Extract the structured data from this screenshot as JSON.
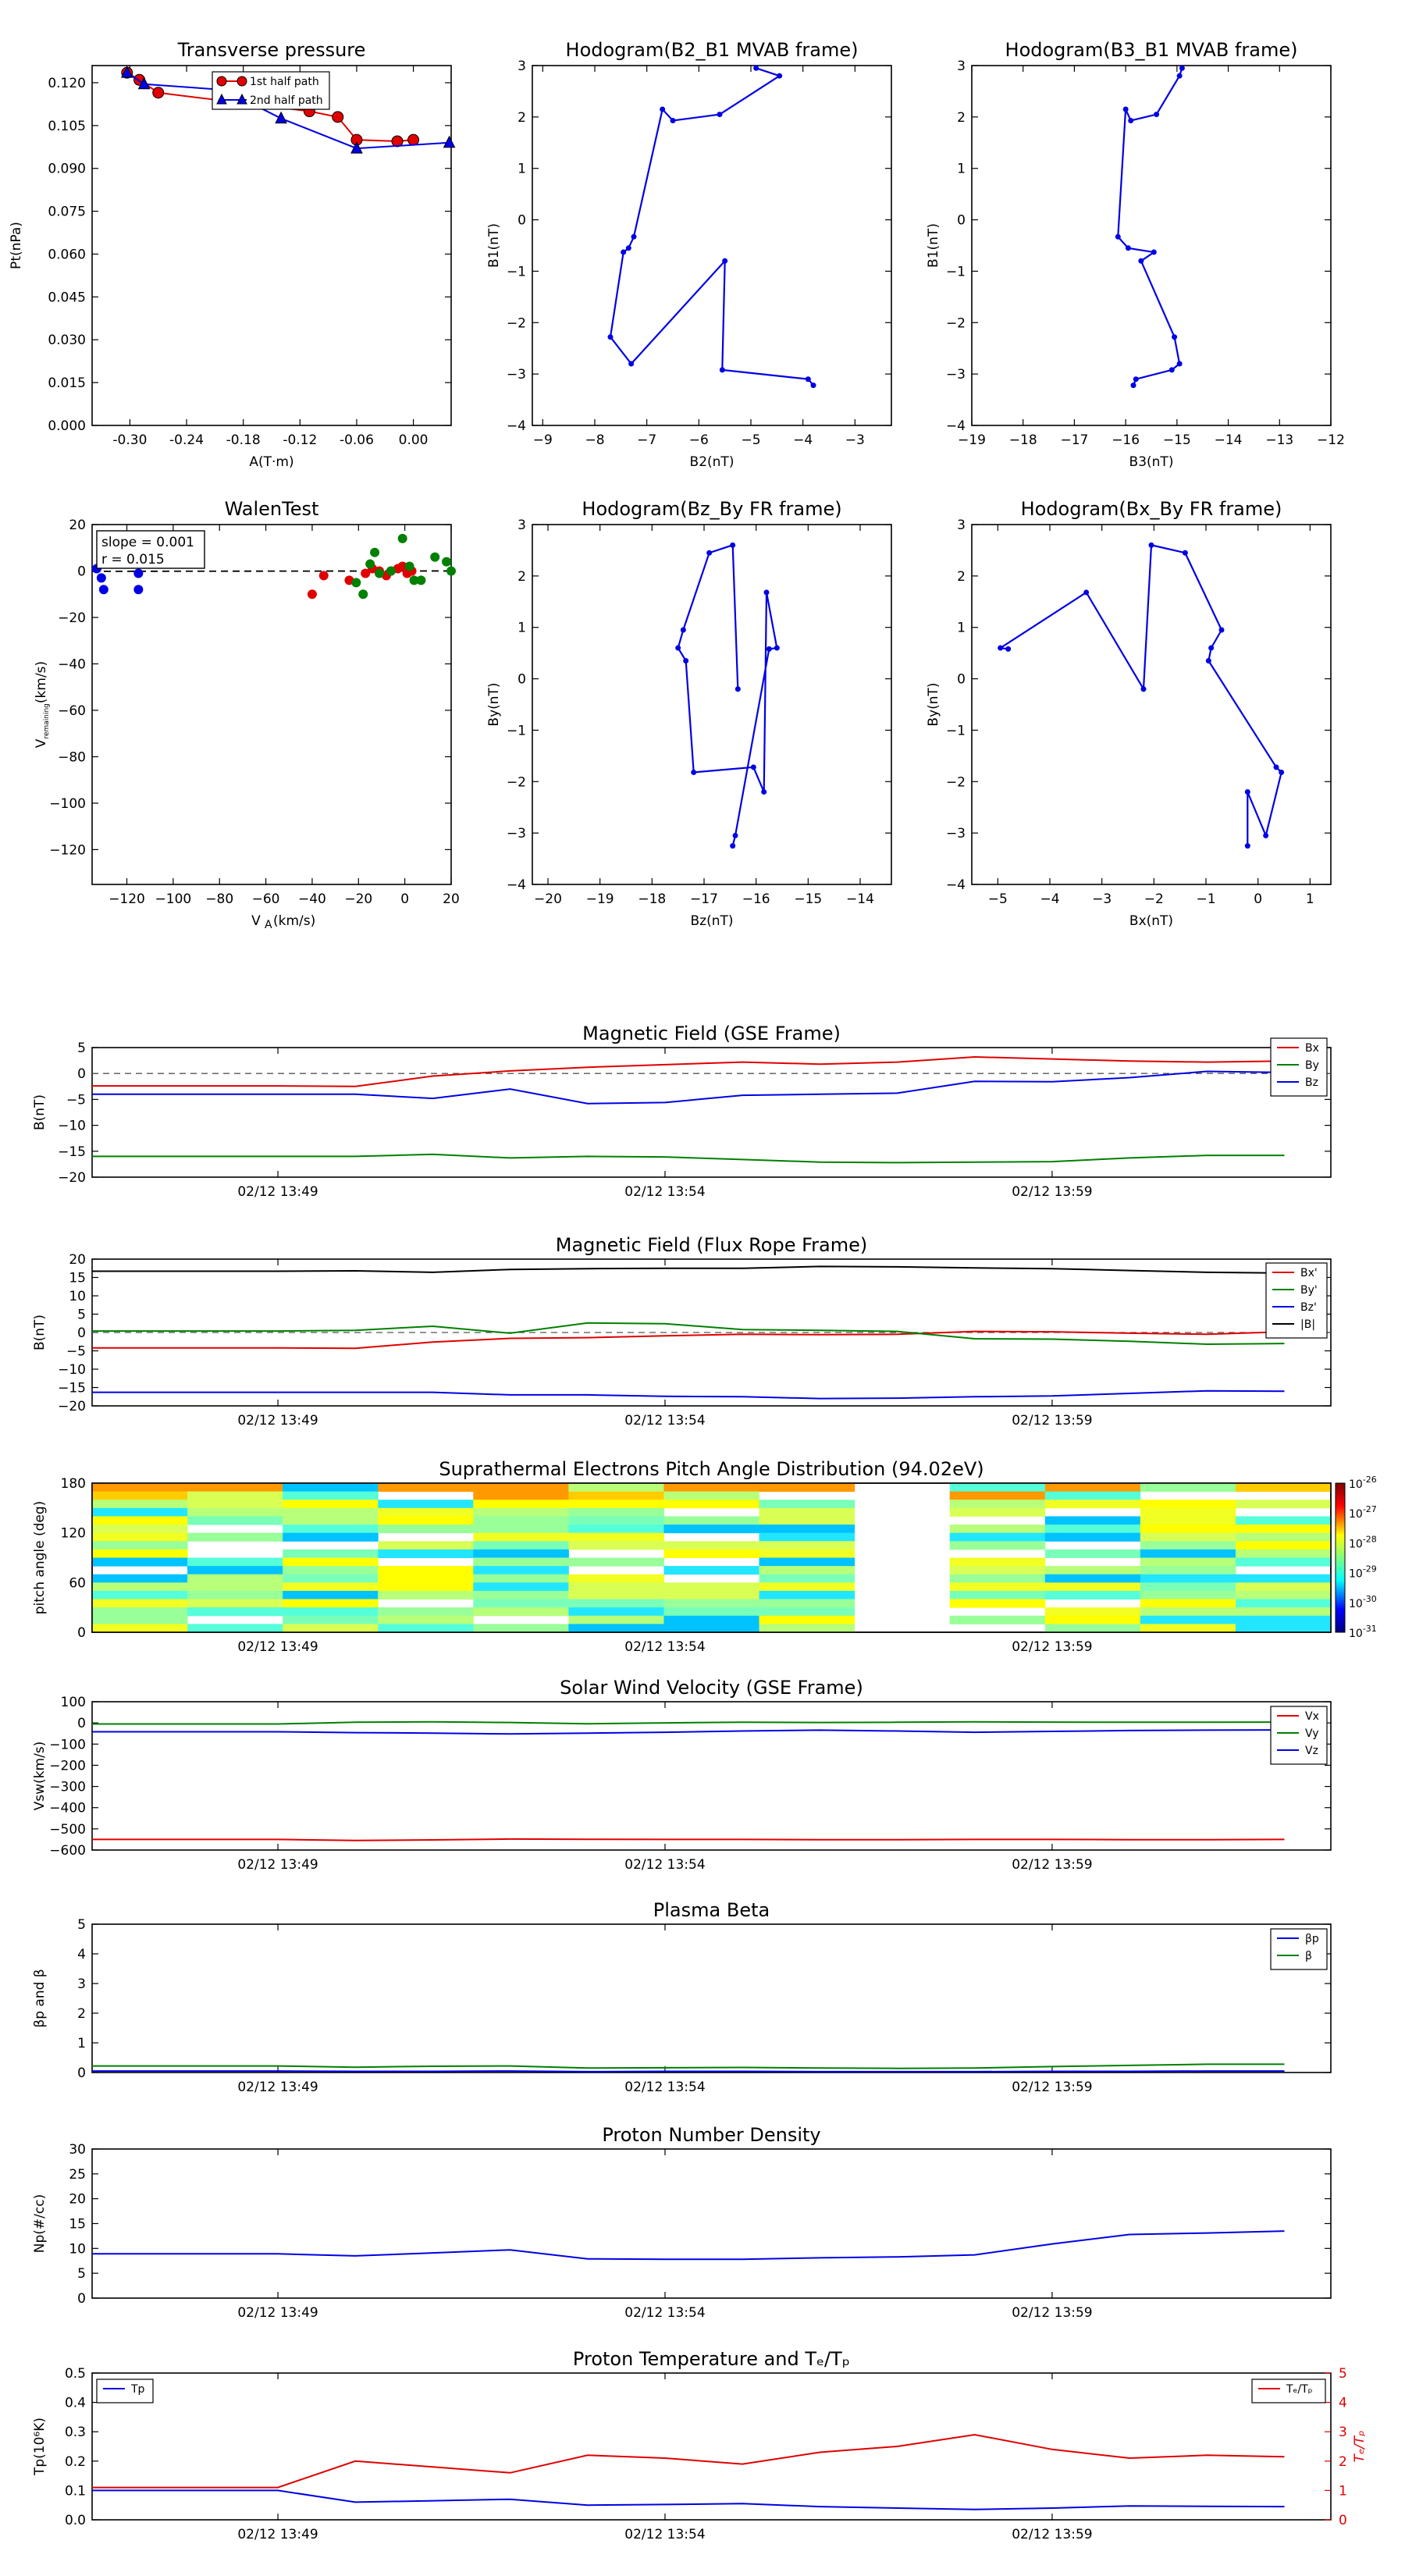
{
  "colors": {
    "red": "#e00000",
    "green": "#008000",
    "blue": "#0000e6",
    "black": "#000000"
  },
  "charts": {
    "transverse": {
      "title": "Transverse pressure",
      "xlabel": "A(T·m)",
      "ylabel": "Pt(nPa)",
      "xticks": [
        "-0.30",
        "-0.24",
        "-0.18",
        "-0.12",
        "-0.06",
        "0.00"
      ],
      "yticks": [
        "0.000",
        "0.015",
        "0.030",
        "0.045",
        "0.060",
        "0.075",
        "0.090",
        "0.105",
        "0.120"
      ],
      "legend": [
        "1st half path",
        "2nd half path"
      ]
    },
    "hodo1": {
      "title": "Hodogram(B2_B1 MVAB frame)",
      "xlabel": "B2(nT)",
      "ylabel": "B1(nT)",
      "xticks": [
        "−9",
        "−8",
        "−7",
        "−6",
        "−5",
        "−4",
        "−3"
      ],
      "yticks": [
        "−4",
        "−3",
        "−2",
        "−1",
        "0",
        "1",
        "2",
        "3"
      ]
    },
    "hodo2": {
      "title": "Hodogram(B3_B1 MVAB frame)",
      "xlabel": "B3(nT)",
      "ylabel": "B1(nT)",
      "xticks": [
        "−19",
        "−18",
        "−17",
        "−16",
        "−15",
        "−14",
        "−13",
        "−12"
      ],
      "yticks": [
        "−4",
        "−3",
        "−2",
        "−1",
        "0",
        "1",
        "2",
        "3"
      ]
    },
    "walen": {
      "title": "WalenTest",
      "xlabel": "V",
      "xlabel_sub": "A",
      "xlabel_rest": "(km/s)",
      "ylabel": "V",
      "ylabel_sub": "remaining",
      "ylabel_rest": "(km/s)",
      "xticks": [
        "−120",
        "−100",
        "−80",
        "−60",
        "−40",
        "−20",
        "0",
        "20"
      ],
      "yticks": [
        "−120",
        "−100",
        "−80",
        "−60",
        "−40",
        "−20",
        "0",
        "20"
      ],
      "slope_text": "slope = 0.001",
      "r_text": "r = 0.015"
    },
    "hodo3": {
      "title": "Hodogram(Bz_By FR frame)",
      "xlabel": "Bz(nT)",
      "ylabel": "By(nT)",
      "xticks": [
        "−20",
        "−19",
        "−18",
        "−17",
        "−16",
        "−15",
        "−14"
      ],
      "yticks": [
        "−4",
        "−3",
        "−2",
        "−1",
        "0",
        "1",
        "2",
        "3"
      ]
    },
    "hodo4": {
      "title": "Hodogram(Bx_By FR frame)",
      "xlabel": "Bx(nT)",
      "ylabel": "By(nT)",
      "xticks": [
        "−5",
        "−4",
        "−3",
        "−2",
        "−1",
        "0",
        "1"
      ],
      "yticks": [
        "−4",
        "−3",
        "−2",
        "−1",
        "0",
        "1",
        "2",
        "3"
      ]
    },
    "mag_gse": {
      "title": "Magnetic Field (GSE Frame)",
      "ylabel": "B(nT)",
      "yticks": [
        "−20",
        "−15",
        "−10",
        "−5",
        "0",
        "5"
      ],
      "legend": [
        "Bx",
        "By",
        "Bz"
      ]
    },
    "mag_fr": {
      "title": "Magnetic Field (Flux Rope Frame)",
      "ylabel": "B(nT)",
      "yticks": [
        "−20",
        "−15",
        "−10",
        "−5",
        "0",
        "5",
        "10",
        "15",
        "20"
      ],
      "legend": [
        "Bx'",
        "By'",
        "Bz'",
        "|B|"
      ]
    },
    "pad": {
      "title": "Suprathermal Electrons Pitch Angle Distribution (94.02eV)",
      "ylabel": "pitch angle (deg)",
      "yticks": [
        "0",
        "60",
        "120",
        "180"
      ],
      "cbar_ticks": [
        "10",
        "10",
        "10",
        "10",
        "10",
        "10"
      ],
      "cbar_exps": [
        "-26",
        "-27",
        "-28",
        "-29",
        "-30",
        "-31"
      ]
    },
    "vsw": {
      "title": "Solar Wind Velocity (GSE Frame)",
      "ylabel": "Vsw(km/s)",
      "yticks": [
        "−600",
        "−500",
        "−400",
        "−300",
        "−200",
        "−100",
        "0",
        "100"
      ],
      "legend": [
        "Vx",
        "Vy",
        "Vz"
      ]
    },
    "beta": {
      "title": "Plasma Beta",
      "ylabel": "βp and β",
      "yticks": [
        "0",
        "1",
        "2",
        "3",
        "4",
        "5"
      ],
      "legend": [
        "βp",
        "β"
      ]
    },
    "density": {
      "title": "Proton Number Density",
      "ylabel": "Np(#/cc)",
      "yticks": [
        "0",
        "5",
        "10",
        "15",
        "20",
        "25",
        "30"
      ]
    },
    "temp": {
      "title": "Proton Temperature and Tₑ/Tₚ",
      "ylabel": "Tp(10⁶K)",
      "ylabel_right": "Tₑ/Tₚ",
      "yticks": [
        "0.0",
        "0.1",
        "0.2",
        "0.3",
        "0.4",
        "0.5"
      ],
      "yticks_right": [
        "0",
        "1",
        "2",
        "3",
        "4",
        "5"
      ],
      "legend": [
        "Tp",
        "Tₑ/Tₚ"
      ]
    },
    "time_ticks": [
      "02/12 13:49",
      "02/12 13:54",
      "02/12 13:59"
    ]
  },
  "chart_data": [
    {
      "type": "scatter",
      "title": "Transverse pressure",
      "xlabel": "A(T·m)",
      "ylabel": "Pt(nPa)",
      "xlim": [
        -0.34,
        0.04
      ],
      "ylim": [
        0.0,
        0.126
      ],
      "series": [
        {
          "name": "1st half path",
          "marker": "circle",
          "color": "#e00000",
          "x": [
            -0.303,
            -0.29,
            -0.27,
            -0.11,
            -0.08,
            -0.06,
            -0.017,
            0.0
          ],
          "y": [
            0.1235,
            0.121,
            0.1165,
            0.11,
            0.108,
            0.1,
            0.0995,
            0.1
          ]
        },
        {
          "name": "2nd half path",
          "marker": "triangle",
          "color": "#0000e6",
          "x": [
            -0.303,
            -0.285,
            -0.2,
            -0.14,
            -0.06,
            0.038
          ],
          "y": [
            0.1235,
            0.1195,
            0.1175,
            0.1075,
            0.097,
            0.099
          ]
        }
      ]
    },
    {
      "type": "line",
      "title": "Hodogram(B2_B1 MVAB frame)",
      "xlabel": "B2(nT)",
      "ylabel": "B1(nT)",
      "xlim": [
        -9.2,
        -2.3
      ],
      "ylim": [
        -4,
        3
      ],
      "x": [
        -4.9,
        -4.45,
        -5.6,
        -6.5,
        -6.7,
        -7.25,
        -7.35,
        -7.45,
        -7.7,
        -7.3,
        -5.5,
        -5.55,
        -3.9,
        -3.8
      ],
      "y": [
        2.95,
        2.8,
        2.05,
        1.93,
        2.15,
        -0.33,
        -0.55,
        -0.63,
        -2.28,
        -2.8,
        -0.8,
        -2.92,
        -3.1,
        -3.22
      ]
    },
    {
      "type": "line",
      "title": "Hodogram(B3_B1 MVAB frame)",
      "xlabel": "B3(nT)",
      "ylabel": "B1(nT)",
      "xlim": [
        -19,
        -12
      ],
      "ylim": [
        -4,
        3
      ],
      "x": [
        -14.9,
        -14.95,
        -15.4,
        -15.9,
        -16.0,
        -16.15,
        -15.95,
        -15.45,
        -15.7,
        -15.05,
        -14.95,
        -15.1,
        -15.8,
        -15.85
      ],
      "y": [
        2.95,
        2.8,
        2.05,
        1.93,
        2.15,
        -0.33,
        -0.55,
        -0.63,
        -0.8,
        -2.28,
        -2.8,
        -2.92,
        -3.1,
        -3.22
      ]
    },
    {
      "type": "scatter",
      "title": "WalenTest",
      "xlabel": "VA(km/s)",
      "ylabel": "Vremaining(km/s)",
      "xlim": [
        -135,
        20
      ],
      "ylim": [
        -135,
        20
      ],
      "fit": {
        "slope": 0.001,
        "r": 0.015
      },
      "series": [
        {
          "color": "#0000e6",
          "x": [
            -133,
            -131,
            -130,
            -115,
            -115
          ],
          "y": [
            1,
            -3,
            -8,
            -1,
            -8
          ]
        },
        {
          "color": "#e00000",
          "x": [
            -40,
            -35,
            -24,
            -17,
            -14,
            -11,
            -8,
            -6,
            -3,
            -1,
            1,
            3
          ],
          "y": [
            -10,
            -2,
            -4,
            -1,
            1,
            0,
            -2,
            0,
            1,
            2,
            -1,
            0
          ]
        },
        {
          "color": "#008000",
          "x": [
            -21,
            -18,
            -15,
            -13,
            -11,
            -6,
            -1,
            2,
            4,
            7,
            13,
            18,
            20
          ],
          "y": [
            -5,
            -10,
            3,
            8,
            -1,
            0,
            14,
            2,
            -4,
            -4,
            6,
            4,
            0
          ]
        }
      ]
    },
    {
      "type": "line",
      "title": "Hodogram(Bz_By FR frame)",
      "xlabel": "Bz(nT)",
      "ylabel": "By(nT)",
      "xlim": [
        -20.3,
        -13.4
      ],
      "ylim": [
        -4,
        3
      ],
      "x": [
        -16.35,
        -16.45,
        -16.9,
        -17.4,
        -17.5,
        -17.35,
        -17.2,
        -16.05,
        -15.85,
        -15.8,
        -15.6,
        -15.75,
        -16.4,
        -16.45
      ],
      "y": [
        -0.2,
        2.6,
        2.45,
        0.95,
        0.6,
        0.35,
        -1.82,
        -1.72,
        -2.2,
        1.68,
        0.6,
        0.58,
        -3.05,
        -3.25
      ]
    },
    {
      "type": "line",
      "title": "Hodogram(Bx_By FR frame)",
      "xlabel": "Bx(nT)",
      "ylabel": "By(nT)",
      "xlim": [
        -5.5,
        1.4
      ],
      "ylim": [
        -4,
        3
      ],
      "x": [
        -4.8,
        -4.95,
        -3.3,
        -2.2,
        -2.05,
        -1.4,
        -0.7,
        -0.9,
        -0.95,
        0.35,
        0.45,
        0.15,
        -0.2,
        -0.2
      ],
      "y": [
        0.58,
        0.6,
        1.68,
        -0.2,
        2.6,
        2.45,
        0.95,
        0.6,
        0.35,
        -1.72,
        -1.82,
        -3.05,
        -2.2,
        -3.25
      ]
    },
    {
      "type": "line",
      "title": "Magnetic Field (GSE Frame)",
      "ylabel": "B(nT)",
      "ylim": [
        -20,
        5
      ],
      "x_minutes": [
        0,
        1,
        2,
        3,
        4,
        5,
        6,
        7,
        8,
        9,
        10,
        11,
        12,
        13
      ],
      "series": [
        {
          "name": "Bx",
          "color": "#e00000",
          "values": [
            -2.4,
            -2.5,
            -0.5,
            0.5,
            1.2,
            1.7,
            2.2,
            1.8,
            2.2,
            3.2,
            2.8,
            2.4,
            2.2,
            2.4
          ]
        },
        {
          "name": "By",
          "color": "#008000",
          "values": [
            -16.0,
            -16.0,
            -15.6,
            -16.3,
            -16.0,
            -16.1,
            -16.6,
            -17.1,
            -17.2,
            -17.1,
            -17.0,
            -16.3,
            -15.8,
            -15.8
          ]
        },
        {
          "name": "Bz",
          "color": "#0000e6",
          "values": [
            -4.0,
            -4.0,
            -4.8,
            -3.0,
            -5.8,
            -5.6,
            -4.2,
            -4.0,
            -3.8,
            -1.5,
            -1.6,
            -0.8,
            0.4,
            0.2
          ]
        }
      ]
    },
    {
      "type": "line",
      "title": "Magnetic Field (Flux Rope Frame)",
      "ylabel": "B(nT)",
      "ylim": [
        -20,
        20
      ],
      "x_minutes": [
        0,
        1,
        2,
        3,
        4,
        5,
        6,
        7,
        8,
        9,
        10,
        11,
        12,
        13
      ],
      "series": [
        {
          "name": "Bx'",
          "color": "#e00000",
          "values": [
            -4.2,
            -4.3,
            -2.6,
            -1.6,
            -1.4,
            -0.9,
            -0.5,
            -0.6,
            -0.5,
            0.3,
            0.2,
            -0.2,
            -0.5,
            0.2
          ]
        },
        {
          "name": "By'",
          "color": "#008000",
          "values": [
            0.4,
            0.6,
            1.7,
            -0.2,
            2.6,
            2.4,
            0.8,
            0.6,
            0.3,
            -1.7,
            -1.8,
            -2.4,
            -3.2,
            -3.0
          ]
        },
        {
          "name": "Bz'",
          "color": "#0000e6",
          "values": [
            -16.3,
            -16.3,
            -16.3,
            -17.0,
            -17.0,
            -17.4,
            -17.5,
            -18.0,
            -17.9,
            -17.5,
            -17.3,
            -16.6,
            -15.9,
            -16.0
          ]
        },
        {
          "name": "|B|",
          "color": "#000000",
          "values": [
            16.7,
            16.8,
            16.4,
            17.2,
            17.4,
            17.5,
            17.5,
            18.0,
            17.9,
            17.6,
            17.4,
            16.9,
            16.4,
            16.2
          ]
        }
      ]
    },
    {
      "type": "heatmap",
      "title": "Suprathermal Electrons Pitch Angle Distribution (94.02eV)",
      "ylabel": "pitch angle (deg)",
      "ylim": [
        0,
        180
      ],
      "colorbar_log_range": [
        -31,
        -26
      ],
      "bins_time": 13,
      "bins_angle": 18,
      "gap_time_bins": [
        8
      ]
    },
    {
      "type": "line",
      "title": "Solar Wind Velocity (GSE Frame)",
      "ylabel": "Vsw(km/s)",
      "ylim": [
        -600,
        100
      ],
      "x_minutes": [
        0,
        1,
        2,
        3,
        4,
        5,
        6,
        7,
        8,
        9,
        10,
        11,
        12,
        13
      ],
      "series": [
        {
          "name": "Vx",
          "color": "#e00000",
          "values": [
            -550,
            -555,
            -552,
            -548,
            -549,
            -550,
            -550,
            -551,
            -551,
            -550,
            -550,
            -551,
            -551,
            -550
          ]
        },
        {
          "name": "Vy",
          "color": "#008000",
          "values": [
            -5,
            3,
            5,
            2,
            -4,
            0,
            3,
            2,
            3,
            5,
            4,
            3,
            3,
            4
          ]
        },
        {
          "name": "Vz",
          "color": "#0000e6",
          "values": [
            -42,
            -46,
            -48,
            -52,
            -48,
            -44,
            -38,
            -34,
            -38,
            -44,
            -40,
            -36,
            -34,
            -33
          ]
        }
      ]
    },
    {
      "type": "line",
      "title": "Plasma Beta",
      "ylabel": "βp and β",
      "ylim": [
        0,
        5
      ],
      "x_minutes": [
        0,
        1,
        2,
        3,
        4,
        5,
        6,
        7,
        8,
        9,
        10,
        11,
        12,
        13
      ],
      "series": [
        {
          "name": "βp",
          "color": "#0000e6",
          "values": [
            0.05,
            0.04,
            0.04,
            0.05,
            0.03,
            0.04,
            0.04,
            0.03,
            0.03,
            0.03,
            0.04,
            0.04,
            0.05,
            0.05
          ]
        },
        {
          "name": "β",
          "color": "#008000",
          "values": [
            0.22,
            0.18,
            0.21,
            0.22,
            0.15,
            0.16,
            0.17,
            0.15,
            0.14,
            0.15,
            0.2,
            0.24,
            0.28,
            0.28
          ]
        }
      ]
    },
    {
      "type": "line",
      "title": "Proton Number Density",
      "ylabel": "Np(#/cc)",
      "ylim": [
        0,
        30
      ],
      "x_minutes": [
        0,
        1,
        2,
        3,
        4,
        5,
        6,
        7,
        8,
        9,
        10,
        11,
        12,
        13
      ],
      "series": [
        {
          "color": "#0000e6",
          "values": [
            8.9,
            8.5,
            9.1,
            9.7,
            7.9,
            7.8,
            7.8,
            8.1,
            8.3,
            8.7,
            10.9,
            12.8,
            13.1,
            13.5
          ]
        }
      ]
    },
    {
      "type": "line",
      "title": "Proton Temperature and Tₑ/Tₚ",
      "ylabel": "Tp(10⁶K)",
      "ylim": [
        0,
        0.5
      ],
      "y2lim": [
        0,
        5
      ],
      "x_minutes": [
        0,
        1,
        2,
        3,
        4,
        5,
        6,
        7,
        8,
        9,
        10,
        11,
        12,
        13
      ],
      "series": [
        {
          "name": "Tp",
          "color": "#0000e6",
          "values": [
            0.1,
            0.06,
            0.065,
            0.07,
            0.05,
            0.052,
            0.055,
            0.045,
            0.04,
            0.035,
            0.04,
            0.047,
            0.046,
            0.045
          ]
        },
        {
          "name": "Tₑ/Tₚ",
          "axis": "right",
          "color": "#e00000",
          "values": [
            1.1,
            2.0,
            1.8,
            1.6,
            2.2,
            2.1,
            1.9,
            2.3,
            2.5,
            2.9,
            2.4,
            2.1,
            2.2,
            2.15
          ]
        }
      ]
    }
  ]
}
